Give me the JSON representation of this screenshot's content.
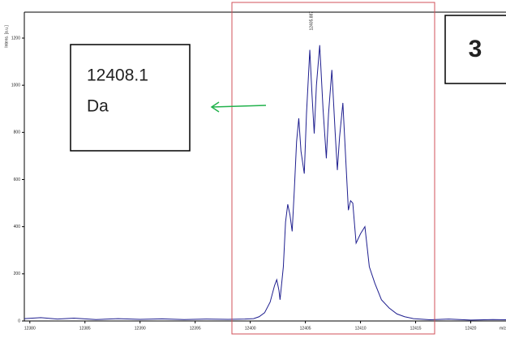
{
  "chart_data": {
    "type": "line",
    "y_label": "Intens. [a.u.]",
    "x_label": "m/z",
    "peak_label": "12405.887",
    "xlim": [
      12379.5,
      12423.2
    ],
    "ylim": [
      0,
      1310
    ],
    "xticks": [
      12380,
      12385,
      12390,
      12395,
      12400,
      12405,
      12410,
      12415,
      12420
    ],
    "yticks": [
      0,
      200,
      400,
      600,
      800,
      1000,
      1200
    ],
    "series": [
      {
        "color": "#1f1f8f",
        "x": [
          12379.5,
          12381,
          12382.5,
          12384,
          12386,
          12388,
          12390,
          12392,
          12394,
          12396,
          12398,
          12399.5,
          12400.3,
          12400.8,
          12401.3,
          12401.8,
          12402.2,
          12402.4,
          12402.6,
          12402.7,
          12403.0,
          12403.2,
          12403.4,
          12403.6,
          12403.8,
          12404.0,
          12404.2,
          12404.4,
          12404.6,
          12404.9,
          12405.1,
          12405.4,
          12405.6,
          12405.8,
          12406.0,
          12406.3,
          12406.6,
          12406.9,
          12407.1,
          12407.4,
          12407.7,
          12407.9,
          12408.1,
          12408.4,
          12408.7,
          12408.9,
          12409.1,
          12409.3,
          12409.6,
          12410.0,
          12410.4,
          12410.8,
          12411.3,
          12411.9,
          12412.6,
          12413.3,
          12414.0,
          12414.8,
          12416.3,
          12418,
          12420,
          12422,
          12423.2
        ],
        "values": [
          10,
          14,
          8,
          12,
          6,
          10,
          7,
          9,
          6,
          8,
          7,
          8,
          10,
          18,
          35,
          80,
          150,
          175,
          130,
          90,
          230,
          420,
          495,
          450,
          380,
          560,
          760,
          860,
          720,
          625,
          880,
          1150,
          960,
          795,
          1000,
          1170,
          900,
          690,
          880,
          1065,
          800,
          640,
          780,
          925,
          650,
          470,
          510,
          500,
          330,
          370,
          400,
          230,
          160,
          90,
          55,
          30,
          18,
          10,
          5,
          8,
          4,
          6,
          5
        ]
      }
    ]
  },
  "mass_box": {
    "lines": [
      "12408.1",
      "Da"
    ]
  },
  "panel_label": "3"
}
